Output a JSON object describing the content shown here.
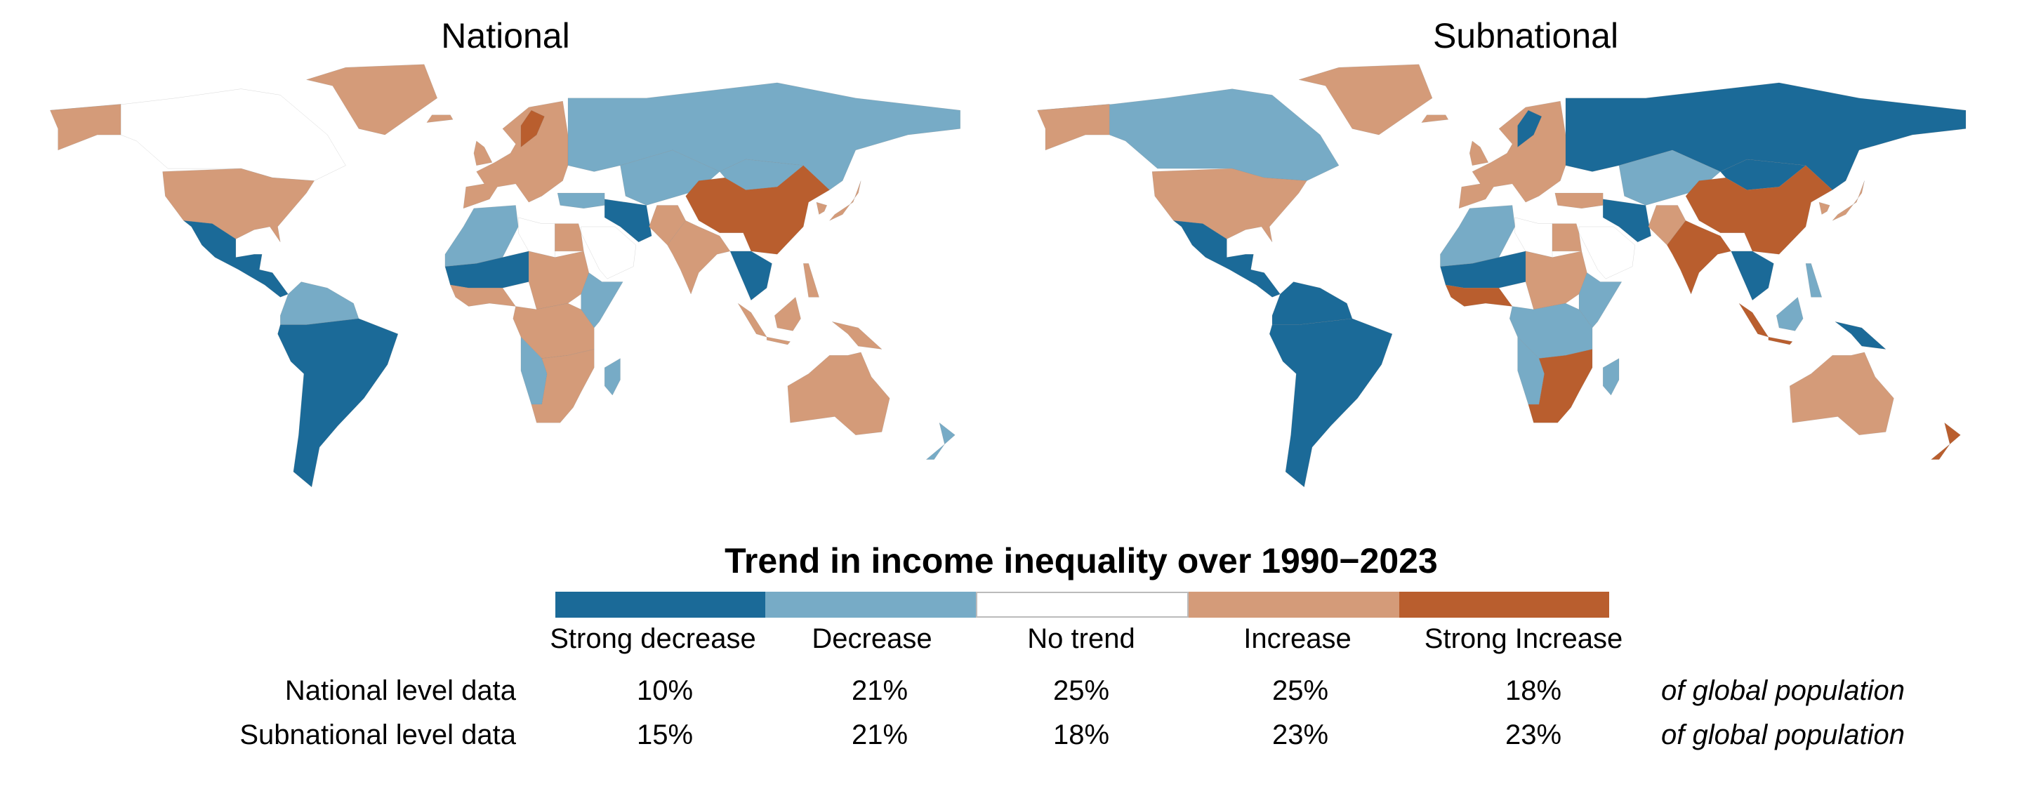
{
  "colors": {
    "strong_decrease": "#1b6a98",
    "decrease": "#77abc6",
    "no_trend": "#ffffff",
    "increase": "#d49b79",
    "strong_increase": "#b95e2e"
  },
  "maps": [
    {
      "title": "National",
      "fills": {
        "canada": "no_trend",
        "alaska": "increase",
        "usa": "increase",
        "greenland": "increase",
        "iceland": "increase",
        "mexico_central_america": "strong_decrease",
        "south_america_north": "decrease",
        "south_america": "strong_decrease",
        "europe": "increase",
        "uk": "increase",
        "scandinavia": "strong_increase",
        "russia": "decrease",
        "central_asia": "decrease",
        "mongolia": "decrease",
        "china": "strong_increase",
        "turkey": "decrease",
        "iran": "strong_decrease",
        "arabia": "no_trend",
        "pakistan_afghanistan": "increase",
        "india": "increase",
        "southeast_asia": "strong_decrease",
        "sumatra": "increase",
        "borneo": "increase",
        "java": "increase",
        "new_guinea": "increase",
        "philippines": "increase",
        "japan": "increase",
        "korea": "increase",
        "australia": "increase",
        "new_zealand": "decrease",
        "maghreb": "decrease",
        "libya": "no_trend",
        "egypt": "increase",
        "sahel": "strong_decrease",
        "west_africa_coast": "increase",
        "sudan_chad": "increase",
        "horn_of_africa": "decrease",
        "central_africa": "increase",
        "angola_namibia": "decrease",
        "southern_africa": "increase",
        "madagascar": "decrease"
      }
    },
    {
      "title": "Subnational",
      "fills": {
        "canada": "decrease",
        "alaska": "increase",
        "usa": "increase",
        "greenland": "increase",
        "iceland": "increase",
        "mexico_central_america": "strong_decrease",
        "south_america_north": "strong_decrease",
        "south_america": "strong_decrease",
        "europe": "increase",
        "uk": "increase",
        "scandinavia": "strong_decrease",
        "russia": "strong_decrease",
        "central_asia": "decrease",
        "mongolia": "strong_decrease",
        "china": "strong_increase",
        "turkey": "increase",
        "iran": "strong_decrease",
        "arabia": "no_trend",
        "pakistan_afghanistan": "increase",
        "india": "strong_increase",
        "southeast_asia": "strong_decrease",
        "sumatra": "strong_increase",
        "borneo": "decrease",
        "java": "strong_increase",
        "new_guinea": "strong_decrease",
        "philippines": "decrease",
        "japan": "increase",
        "korea": "increase",
        "australia": "increase",
        "new_zealand": "strong_increase",
        "maghreb": "decrease",
        "libya": "no_trend",
        "egypt": "increase",
        "sahel": "strong_decrease",
        "west_africa_coast": "strong_increase",
        "sudan_chad": "increase",
        "horn_of_africa": "decrease",
        "central_africa": "decrease",
        "angola_namibia": "decrease",
        "southern_africa": "strong_increase",
        "madagascar": "decrease"
      }
    }
  ],
  "legend": {
    "title": "Trend in income inequality over 1990−2023",
    "categories": [
      {
        "key": "strong_decrease",
        "label": "Strong decrease"
      },
      {
        "key": "decrease",
        "label": "Decrease"
      },
      {
        "key": "no_trend",
        "label": "No trend"
      },
      {
        "key": "increase",
        "label": "Increase"
      },
      {
        "key": "strong_increase",
        "label": "Strong Increase"
      }
    ]
  },
  "population_shares": {
    "suffix": "of global population",
    "rows": [
      {
        "label": "National level data",
        "values": [
          "10%",
          "21%",
          "25%",
          "25%",
          "18%"
        ]
      },
      {
        "label": "Subnational level data",
        "values": [
          "15%",
          "21%",
          "18%",
          "23%",
          "23%"
        ]
      }
    ]
  }
}
